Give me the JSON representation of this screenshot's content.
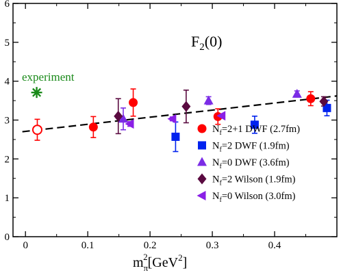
{
  "chart_data": {
    "type": "scatter",
    "title": "F",
    "title_sub": "2",
    "title_arg": "(0)",
    "xlabel_main": "m",
    "xlabel_sub": "π",
    "xlabel_sup": "2",
    "xlabel_unit_open": "[GeV",
    "xlabel_unit_sup": "2",
    "xlabel_unit_close": "]",
    "xlim": [
      -0.02,
      0.5
    ],
    "ylim": [
      0,
      6
    ],
    "x_ticks": [
      "0",
      "0.1",
      "0.2",
      "0.3",
      "0.4"
    ],
    "x_tick_values": [
      0,
      0.1,
      0.2,
      0.3,
      0.4
    ],
    "y_ticks": [
      "0",
      "1",
      "2",
      "3",
      "4",
      "5",
      "6"
    ],
    "y_tick_values": [
      0,
      1,
      2,
      3,
      4,
      5,
      6
    ],
    "legend_position": "lower-right",
    "fit_line": {
      "style": "dashed",
      "color": "#000000",
      "points": [
        [
          -0.005,
          2.7
        ],
        [
          0.5,
          3.62
        ]
      ]
    },
    "experiment": {
      "label": "experiment",
      "x": 0.018,
      "y": 3.71,
      "color": "#1a8a1a"
    },
    "series": [
      {
        "name_pre": "N",
        "name_sub": "f",
        "name_post": "=2+1 DWF (2.7fm)",
        "marker": "circle",
        "color": "#ff0000",
        "points": [
          {
            "x": 0.019,
            "y": 2.75,
            "err": 0.27,
            "open": true
          },
          {
            "x": 0.109,
            "y": 2.82,
            "err": 0.27
          },
          {
            "x": 0.173,
            "y": 3.45,
            "err": 0.35
          },
          {
            "x": 0.309,
            "y": 3.09,
            "err": 0.2
          },
          {
            "x": 0.458,
            "y": 3.55,
            "err": 0.18
          }
        ]
      },
      {
        "name_pre": "N",
        "name_sub": "f",
        "name_post": "=2 DWF (1.9fm)",
        "marker": "square",
        "color": "#0022ee",
        "points": [
          {
            "x": 0.241,
            "y": 2.57,
            "err": 0.38
          },
          {
            "x": 0.368,
            "y": 2.88,
            "err": 0.22
          },
          {
            "x": 0.484,
            "y": 3.31,
            "err": 0.2
          }
        ]
      },
      {
        "name_pre": "N",
        "name_sub": "f",
        "name_post": "=0 DWF (3.6fm)",
        "marker": "triangle-up",
        "color": "#7b2ce6",
        "points": [
          {
            "x": 0.157,
            "y": 3.03,
            "err": 0.28
          },
          {
            "x": 0.294,
            "y": 3.5,
            "err": 0.1
          },
          {
            "x": 0.436,
            "y": 3.67,
            "err": 0.08
          }
        ]
      },
      {
        "name_pre": "N",
        "name_sub": "f",
        "name_post": "=2 Wilson (1.9fm)",
        "marker": "diamond",
        "color": "#5a0a40",
        "points": [
          {
            "x": 0.149,
            "y": 3.1,
            "err": 0.45
          },
          {
            "x": 0.258,
            "y": 3.35,
            "err": 0.42
          },
          {
            "x": 0.479,
            "y": 3.48,
            "err": 0.12
          }
        ]
      },
      {
        "name_pre": "N",
        "name_sub": "f",
        "name_post": "=0 Wilson (3.0fm)",
        "marker": "triangle-left",
        "color": "#8a1fe6",
        "points": [
          {
            "x": 0.168,
            "y": 2.9,
            "err": 0.06
          },
          {
            "x": 0.236,
            "y": 3.03,
            "err": 0.05
          },
          {
            "x": 0.315,
            "y": 3.11,
            "err": 0.05
          }
        ]
      }
    ]
  }
}
